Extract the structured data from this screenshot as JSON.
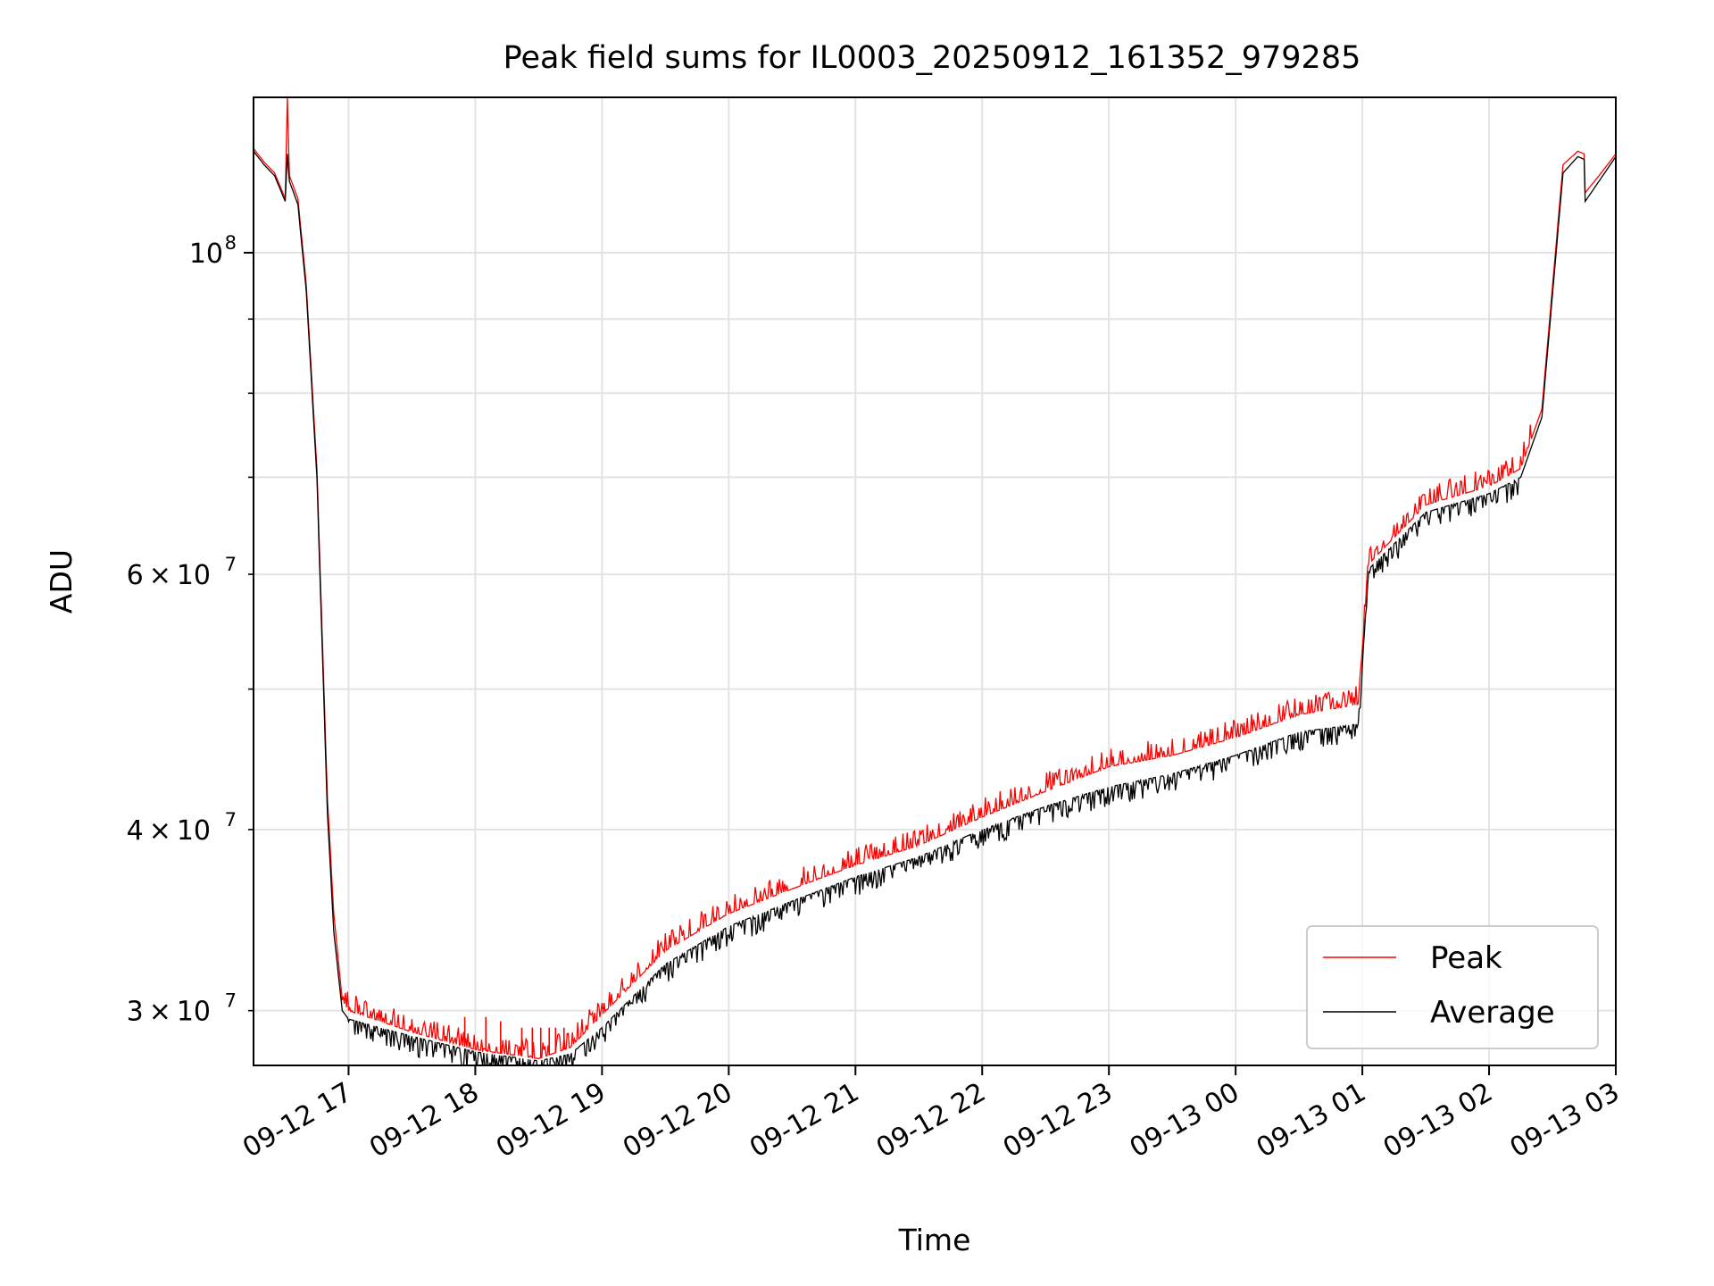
{
  "chart_data": {
    "type": "line",
    "title": "Peak field sums for IL0003_20250912_161352_979285",
    "xlabel": "Time",
    "ylabel": "ADU",
    "x_axis": {
      "type": "time",
      "range": [
        "09-12 16:15",
        "09-13 03:00"
      ],
      "ticks": [
        "09-12 17",
        "09-12 18",
        "09-12 19",
        "09-12 20",
        "09-12 21",
        "09-12 22",
        "09-12 23",
        "09-13 00",
        "09-13 01",
        "09-13 02",
        "09-13 03"
      ],
      "tick_label_rotation_deg": 30
    },
    "y_axis": {
      "scale": "log",
      "range": [
        27500000,
        128000000
      ],
      "major_tick": {
        "value": 100000000,
        "label_base": "10",
        "label_exp": "8"
      },
      "minor_ticks": [
        {
          "value": 30000000,
          "label_mantissa": "3",
          "label_exp": "7"
        },
        {
          "value": 40000000,
          "label_mantissa": "4",
          "label_exp": "7"
        },
        {
          "value": 50000000
        },
        {
          "value": 60000000,
          "label_mantissa": "6",
          "label_exp": "7"
        },
        {
          "value": 70000000
        },
        {
          "value": 80000000
        },
        {
          "value": 90000000
        }
      ],
      "label_times": "×",
      "label_ten": "10"
    },
    "grid": true,
    "legend": {
      "placement": "lower right"
    },
    "series": [
      {
        "name": "Peak",
        "color": "#ff0000",
        "noise_band": "upper spikes above the average",
        "points": [
          [
            "09-12 16:15",
            118000000
          ],
          [
            "09-12 16:20",
            115500000
          ],
          [
            "09-12 16:25",
            113500000
          ],
          [
            "09-12 16:30",
            109000000
          ],
          [
            "09-12 16:31",
            128000000
          ],
          [
            "09-12 16:32",
            113000000
          ],
          [
            "09-12 16:36",
            109000000
          ],
          [
            "09-12 16:40",
            95000000
          ],
          [
            "09-12 16:45",
            71000000
          ],
          [
            "09-12 16:50",
            42000000
          ],
          [
            "09-12 16:53",
            35000000
          ],
          [
            "09-12 16:57",
            30500000
          ],
          [
            "09-12 17:00",
            30000000
          ],
          [
            "09-12 17:30",
            29000000
          ],
          [
            "09-12 18:00",
            28200000
          ],
          [
            "09-12 18:30",
            27800000
          ],
          [
            "09-12 18:45",
            28300000
          ],
          [
            "09-12 19:00",
            29800000
          ],
          [
            "09-12 19:30",
            33000000
          ],
          [
            "09-12 20:00",
            35000000
          ],
          [
            "09-12 20:30",
            36400000
          ],
          [
            "09-12 21:00",
            37800000
          ],
          [
            "09-12 21:30",
            39000000
          ],
          [
            "09-12 22:00",
            40800000
          ],
          [
            "09-12 22:30",
            42500000
          ],
          [
            "09-12 23:00",
            44200000
          ],
          [
            "09-12 23:30",
            45000000
          ],
          [
            "09-13 00:00",
            46300000
          ],
          [
            "09-13 00:30",
            48000000
          ],
          [
            "09-13 00:58",
            48800000
          ],
          [
            "09-13 01:03",
            61000000
          ],
          [
            "09-13 01:30",
            67000000
          ],
          [
            "09-13 02:00",
            69000000
          ],
          [
            "09-13 02:15",
            71000000
          ],
          [
            "09-13 02:25",
            78000000
          ],
          [
            "09-13 02:35",
            115000000
          ],
          [
            "09-13 02:42",
            117500000
          ],
          [
            "09-13 02:45",
            117000000
          ],
          [
            "09-13 02:45:30",
            110000000
          ],
          [
            "09-13 02:52",
            113000000
          ],
          [
            "09-13 03:00",
            117000000
          ]
        ],
        "spikes": [
          [
            "09-12 17:55",
            29700000
          ],
          [
            "09-12 18:05",
            29700000
          ],
          [
            "09-12 18:12",
            29500000
          ],
          [
            "09-12 18:22",
            29200000
          ],
          [
            "09-12 18:27",
            29200000
          ],
          [
            "09-12 18:31",
            29200000
          ],
          [
            "09-12 18:35",
            29200000
          ],
          [
            "09-12 18:38",
            29200000
          ],
          [
            "09-12 18:42",
            29200000
          ]
        ]
      },
      {
        "name": "Average",
        "color": "#000000",
        "noise_band": "lower dips below the trend",
        "points": [
          [
            "09-12 16:15",
            117500000
          ],
          [
            "09-12 16:20",
            115000000
          ],
          [
            "09-12 16:25",
            113000000
          ],
          [
            "09-12 16:30",
            108500000
          ],
          [
            "09-12 16:31",
            117000000
          ],
          [
            "09-12 16:32",
            112000000
          ],
          [
            "09-12 16:36",
            108000000
          ],
          [
            "09-12 16:40",
            94000000
          ],
          [
            "09-12 16:45",
            70000000
          ],
          [
            "09-12 16:50",
            41000000
          ],
          [
            "09-12 16:53",
            34000000
          ],
          [
            "09-12 16:57",
            30000000
          ],
          [
            "09-12 17:00",
            29600000
          ],
          [
            "09-12 17:30",
            28800000
          ],
          [
            "09-12 18:00",
            28100000
          ],
          [
            "09-12 18:30",
            27700000
          ],
          [
            "09-12 18:45",
            28000000
          ],
          [
            "09-12 19:00",
            29200000
          ],
          [
            "09-12 19:30",
            32300000
          ],
          [
            "09-12 20:00",
            34300000
          ],
          [
            "09-12 20:30",
            35700000
          ],
          [
            "09-12 21:00",
            37100000
          ],
          [
            "09-12 21:30",
            38300000
          ],
          [
            "09-12 22:00",
            40000000
          ],
          [
            "09-12 22:30",
            41500000
          ],
          [
            "09-12 23:00",
            42800000
          ],
          [
            "09-12 23:30",
            43700000
          ],
          [
            "09-13 00:00",
            45000000
          ],
          [
            "09-13 00:30",
            46700000
          ],
          [
            "09-13 00:58",
            47300000
          ],
          [
            "09-13 01:03",
            60500000
          ],
          [
            "09-13 01:30",
            66200000
          ],
          [
            "09-13 02:00",
            68200000
          ],
          [
            "09-13 02:15",
            70000000
          ],
          [
            "09-13 02:25",
            77000000
          ],
          [
            "09-13 02:35",
            113500000
          ],
          [
            "09-13 02:42",
            116500000
          ],
          [
            "09-13 02:45",
            116000000
          ],
          [
            "09-13 02:45:30",
            108500000
          ],
          [
            "09-13 02:52",
            112000000
          ],
          [
            "09-13 03:00",
            116500000
          ]
        ]
      }
    ]
  }
}
